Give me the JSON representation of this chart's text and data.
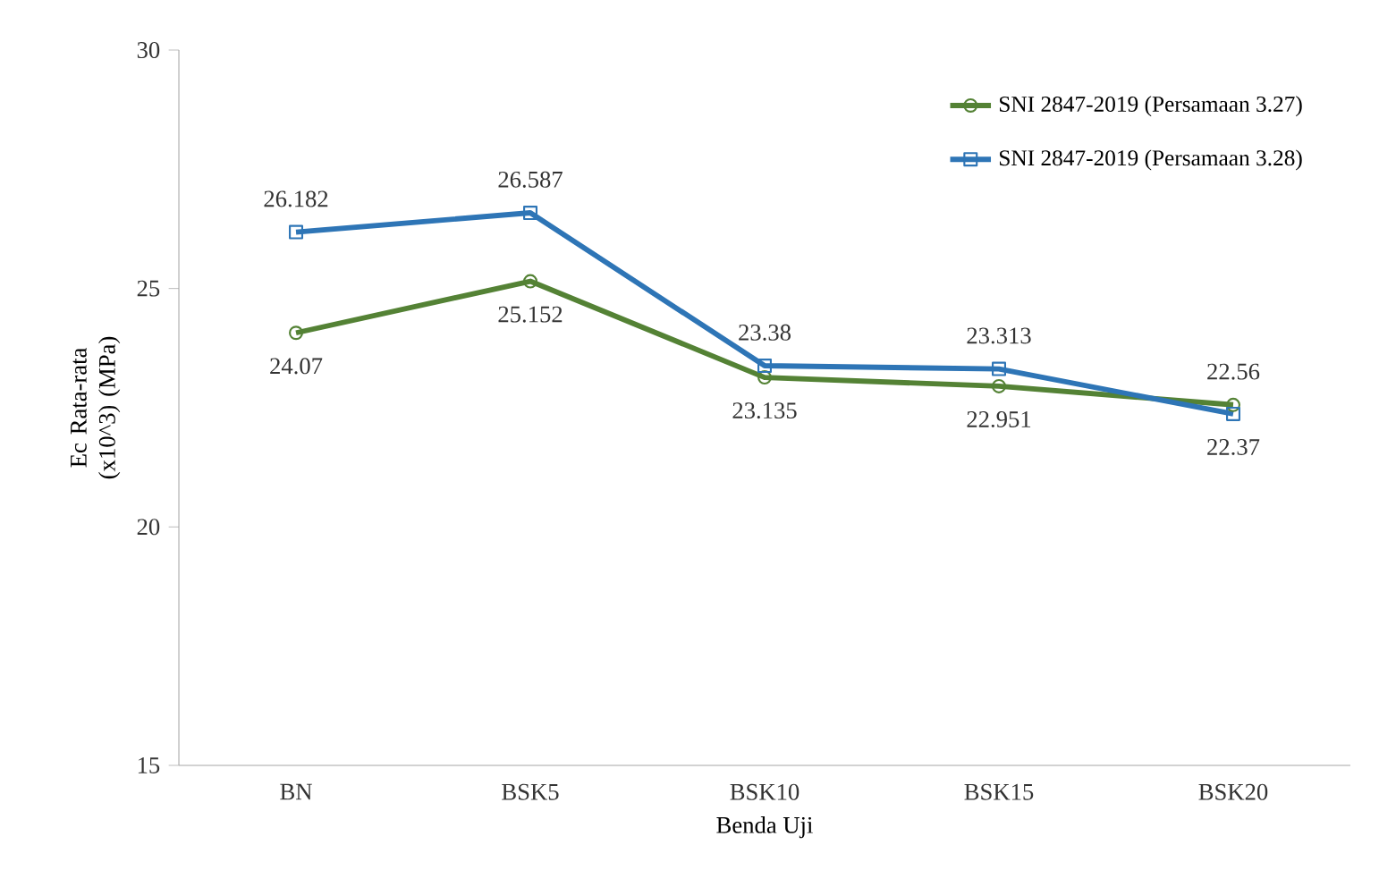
{
  "chart_data": {
    "type": "line",
    "xlabel": "Benda Uji",
    "ylabel": "Ec Rata-rata (x10^3) (MPa)",
    "categories": [
      "BN",
      "BSK5",
      "BSK10",
      "BSK15",
      "BSK20"
    ],
    "ylim": [
      15,
      30
    ],
    "yticks": [
      15,
      20,
      25,
      30
    ],
    "legend": "top right",
    "line_style": "solid",
    "series": [
      {
        "name": "SNI 2847-2019 (Persamaan 3.27)",
        "color": "#548235",
        "marker": "circle",
        "values": [
          24.07,
          25.152,
          23.135,
          22.951,
          22.56
        ],
        "value_labels": [
          "24.07",
          "25.152",
          "23.135",
          "22.951",
          "22.56"
        ]
      },
      {
        "name": "SNI 2847-2019 (Persamaan 3.28)",
        "color": "#2e75b6",
        "marker": "square",
        "values": [
          26.182,
          26.587,
          23.38,
          23.313,
          22.37
        ],
        "value_labels": [
          "26.182",
          "26.587",
          "23.38",
          "23.313",
          "22.37"
        ]
      }
    ]
  }
}
